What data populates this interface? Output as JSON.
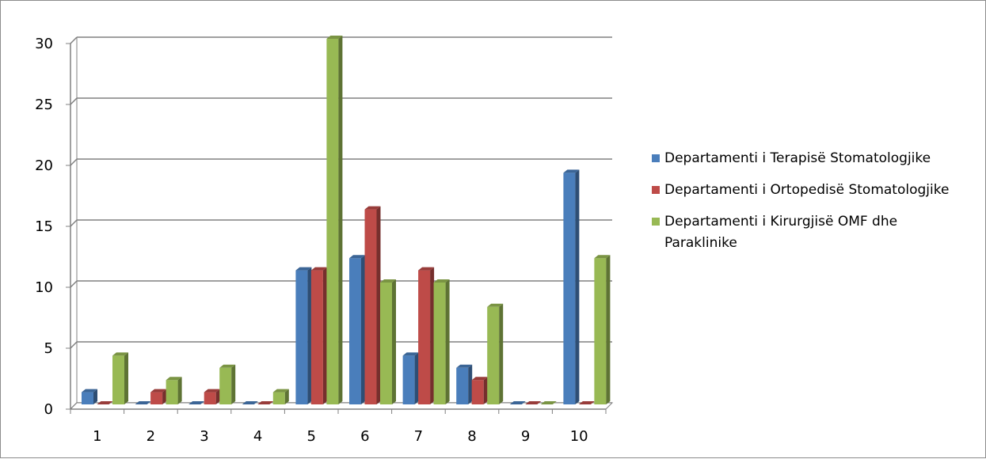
{
  "chart_data": {
    "type": "bar",
    "three_d": true,
    "categories": [
      "1",
      "2",
      "3",
      "4",
      "5",
      "6",
      "7",
      "8",
      "9",
      "10"
    ],
    "series": [
      {
        "name": "Departamenti i Terapisë Stomatologjike",
        "color": "#4a7ebb",
        "values": [
          1,
          0,
          0,
          0,
          11,
          12,
          4,
          3,
          0,
          19
        ]
      },
      {
        "name": "Departamenti i Ortopedisë Stomatologjike",
        "color": "#be4b48",
        "values": [
          0,
          1,
          1,
          0,
          11,
          16,
          11,
          2,
          0,
          0
        ]
      },
      {
        "name": "Departamenti i Kirurgjisë OMF dhe Paraklinike",
        "color": "#98b954",
        "values": [
          4,
          2,
          3,
          1,
          30,
          10,
          10,
          8,
          0,
          12
        ]
      }
    ],
    "y_ticks": [
      "0",
      "5",
      "10",
      "15",
      "20",
      "25",
      "30"
    ],
    "ylim": [
      0,
      30
    ],
    "grid": true,
    "legend_position": "right"
  }
}
